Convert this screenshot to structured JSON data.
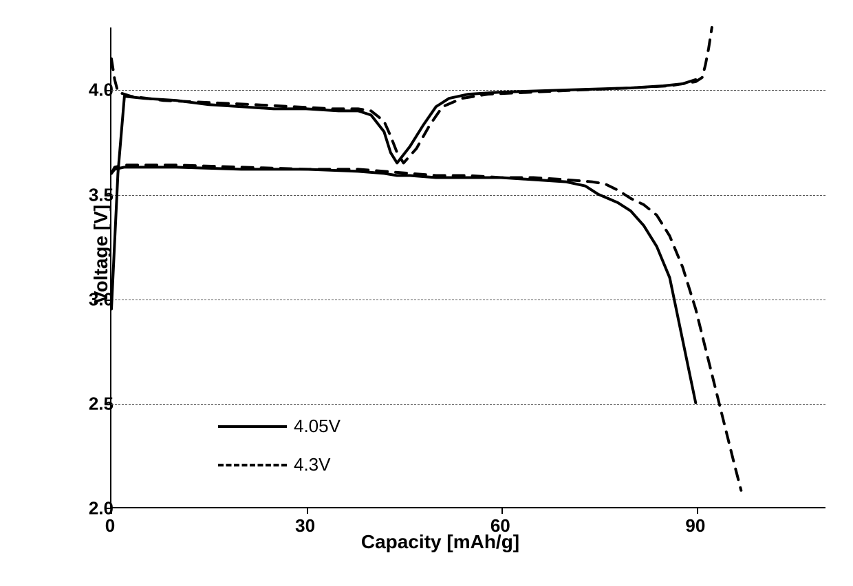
{
  "chart": {
    "type": "line",
    "xlabel": "Capacity [mAh/g]",
    "ylabel": "Voltage [V]",
    "xlim": [
      0,
      110
    ],
    "ylim": [
      2.0,
      4.3
    ],
    "xticks": [
      0,
      30,
      60,
      90
    ],
    "yticks": [
      2.0,
      2.5,
      3.0,
      3.5,
      4.0
    ],
    "ytick_labels": [
      "2.0",
      "2.5",
      "3.0",
      "3.5",
      "4.0"
    ],
    "xtick_labels": [
      "0",
      "30",
      "60",
      "90"
    ],
    "background_color": "#ffffff",
    "grid_color": "#555555",
    "axis_line_width": 2.5,
    "line_width": 4,
    "legend": {
      "items": [
        {
          "label": "4.05V",
          "style": "solid"
        },
        {
          "label": "4.3V",
          "style": "dashed"
        }
      ]
    },
    "series": [
      {
        "name": "4.05V_charge",
        "style": "solid",
        "color": "#000000",
        "points": [
          [
            0,
            2.95
          ],
          [
            1,
            3.6
          ],
          [
            2,
            3.97
          ],
          [
            5,
            3.96
          ],
          [
            10,
            3.95
          ],
          [
            15,
            3.93
          ],
          [
            20,
            3.92
          ],
          [
            25,
            3.91
          ],
          [
            30,
            3.91
          ],
          [
            35,
            3.9
          ],
          [
            38,
            3.9
          ],
          [
            40,
            3.88
          ],
          [
            42,
            3.8
          ],
          [
            43,
            3.7
          ],
          [
            44,
            3.65
          ],
          [
            46,
            3.73
          ],
          [
            48,
            3.83
          ],
          [
            50,
            3.92
          ],
          [
            52,
            3.96
          ],
          [
            55,
            3.98
          ],
          [
            60,
            3.99
          ],
          [
            70,
            4.0
          ],
          [
            80,
            4.01
          ],
          [
            85,
            4.02
          ],
          [
            88,
            4.03
          ],
          [
            90,
            4.05
          ]
        ]
      },
      {
        "name": "4.05V_discharge",
        "style": "solid",
        "color": "#000000",
        "points": [
          [
            0,
            3.6
          ],
          [
            0.5,
            3.62
          ],
          [
            2,
            3.63
          ],
          [
            5,
            3.63
          ],
          [
            10,
            3.63
          ],
          [
            20,
            3.62
          ],
          [
            30,
            3.62
          ],
          [
            38,
            3.61
          ],
          [
            42,
            3.6
          ],
          [
            44,
            3.59
          ],
          [
            46,
            3.59
          ],
          [
            50,
            3.58
          ],
          [
            55,
            3.58
          ],
          [
            60,
            3.58
          ],
          [
            65,
            3.57
          ],
          [
            70,
            3.56
          ],
          [
            73,
            3.54
          ],
          [
            75,
            3.5
          ],
          [
            78,
            3.46
          ],
          [
            80,
            3.42
          ],
          [
            82,
            3.35
          ],
          [
            84,
            3.25
          ],
          [
            86,
            3.1
          ],
          [
            87,
            2.95
          ],
          [
            88,
            2.8
          ],
          [
            89,
            2.65
          ],
          [
            90,
            2.5
          ]
        ]
      },
      {
        "name": "4.3V_charge",
        "style": "dashed",
        "color": "#000000",
        "points": [
          [
            0,
            4.15
          ],
          [
            0.5,
            4.05
          ],
          [
            1,
            3.99
          ],
          [
            3,
            3.97
          ],
          [
            8,
            3.95
          ],
          [
            15,
            3.94
          ],
          [
            22,
            3.93
          ],
          [
            28,
            3.92
          ],
          [
            34,
            3.91
          ],
          [
            38,
            3.91
          ],
          [
            40,
            3.9
          ],
          [
            42,
            3.85
          ],
          [
            43,
            3.78
          ],
          [
            44,
            3.7
          ],
          [
            45,
            3.65
          ],
          [
            47,
            3.72
          ],
          [
            49,
            3.83
          ],
          [
            51,
            3.92
          ],
          [
            54,
            3.96
          ],
          [
            58,
            3.98
          ],
          [
            65,
            3.99
          ],
          [
            72,
            4.0
          ],
          [
            80,
            4.01
          ],
          [
            86,
            4.02
          ],
          [
            90,
            4.04
          ],
          [
            91,
            4.06
          ],
          [
            91.5,
            4.12
          ],
          [
            92,
            4.2
          ],
          [
            92.5,
            4.3
          ]
        ]
      },
      {
        "name": "4.3V_discharge",
        "style": "dashed",
        "color": "#000000",
        "points": [
          [
            0,
            3.6
          ],
          [
            0.5,
            3.63
          ],
          [
            2,
            3.64
          ],
          [
            5,
            3.64
          ],
          [
            10,
            3.64
          ],
          [
            20,
            3.63
          ],
          [
            30,
            3.62
          ],
          [
            38,
            3.62
          ],
          [
            42,
            3.61
          ],
          [
            46,
            3.6
          ],
          [
            50,
            3.59
          ],
          [
            55,
            3.59
          ],
          [
            60,
            3.58
          ],
          [
            65,
            3.58
          ],
          [
            70,
            3.57
          ],
          [
            74,
            3.56
          ],
          [
            76,
            3.55
          ],
          [
            78,
            3.52
          ],
          [
            80,
            3.48
          ],
          [
            82,
            3.45
          ],
          [
            84,
            3.4
          ],
          [
            86,
            3.3
          ],
          [
            88,
            3.15
          ],
          [
            90,
            2.95
          ],
          [
            92,
            2.7
          ],
          [
            94,
            2.45
          ],
          [
            96,
            2.2
          ],
          [
            97,
            2.08
          ]
        ]
      }
    ]
  }
}
